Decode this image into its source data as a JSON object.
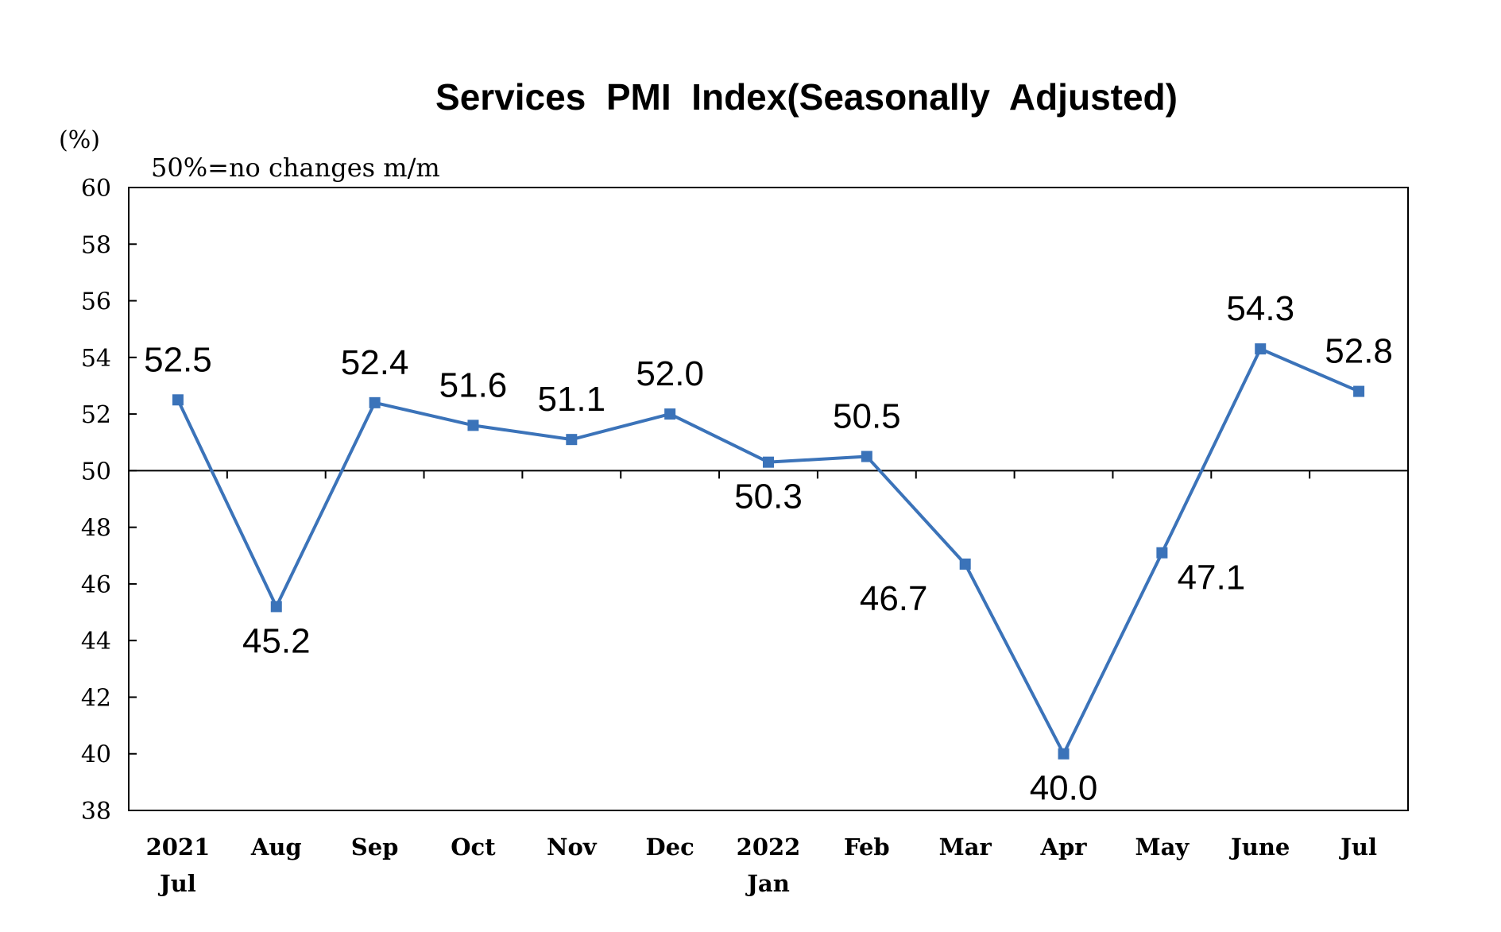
{
  "chart_data": {
    "type": "line",
    "title": "Services  PMI  Index(Seasonally  Adjusted)",
    "ylabel": "(%)",
    "annotation": "50%=no changes m/m",
    "ylim": [
      38,
      60
    ],
    "yticks": [
      "38",
      "40",
      "42",
      "44",
      "46",
      "48",
      "50",
      "52",
      "54",
      "56",
      "58",
      "60"
    ],
    "reference_line": 50,
    "categories": [
      [
        "2021",
        "Jul"
      ],
      [
        "Aug"
      ],
      [
        "Sep"
      ],
      [
        "Oct"
      ],
      [
        "Nov"
      ],
      [
        "Dec"
      ],
      [
        "2022",
        "Jan"
      ],
      [
        "Feb"
      ],
      [
        "Mar"
      ],
      [
        "Apr"
      ],
      [
        "May"
      ],
      [
        "June"
      ],
      [
        "Jul"
      ]
    ],
    "values": [
      52.5,
      45.2,
      52.4,
      51.6,
      51.1,
      52.0,
      50.3,
      50.5,
      46.7,
      40.0,
      47.1,
      54.3,
      52.8
    ],
    "data_labels": [
      "52.5",
      "45.2",
      "52.4",
      "51.6",
      "51.1",
      "52.0",
      "50.3",
      "50.5",
      "46.7",
      "40.0",
      "47.1",
      "54.3",
      "52.8"
    ],
    "label_positions": [
      "above",
      "below",
      "above",
      "above",
      "above",
      "above",
      "below",
      "above",
      "left-below",
      "below",
      "right-below",
      "above",
      "above"
    ],
    "series_color": "#3B73B9",
    "grid": false,
    "legend": "none"
  }
}
